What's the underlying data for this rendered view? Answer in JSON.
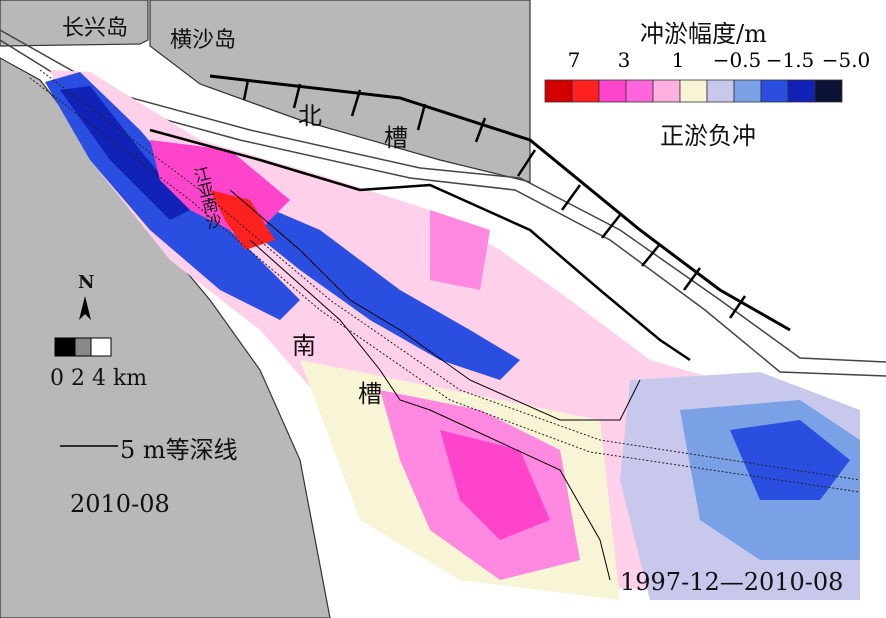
{
  "map": {
    "places": {
      "changxing": "长兴岛",
      "hengsha": "横沙岛",
      "jiangya": "江亚南沙",
      "north_channel": [
        "北",
        "槽"
      ],
      "south_channel": [
        "南",
        "槽"
      ]
    },
    "legend": {
      "title": "冲淤幅度/m",
      "ticks": [
        "7",
        "3",
        "1",
        "−0.5",
        "−1.5",
        "−5.0"
      ],
      "classes": [
        "#d40000",
        "#ff2020",
        "#ff44cc",
        "#ff66dd",
        "#ffb0e0",
        "#f8f4d6",
        "#c8c8ec",
        "#7aa0e6",
        "#2a4ee0",
        "#1022b8",
        "#0b1236"
      ],
      "subtitle": "正淤负冲"
    },
    "north_arrow": "N",
    "scale": {
      "labels": "0 2 4 km"
    },
    "contour_label": "5 m等深线",
    "date_left": "2010-08",
    "date_range": "1997-12—2010-08"
  }
}
